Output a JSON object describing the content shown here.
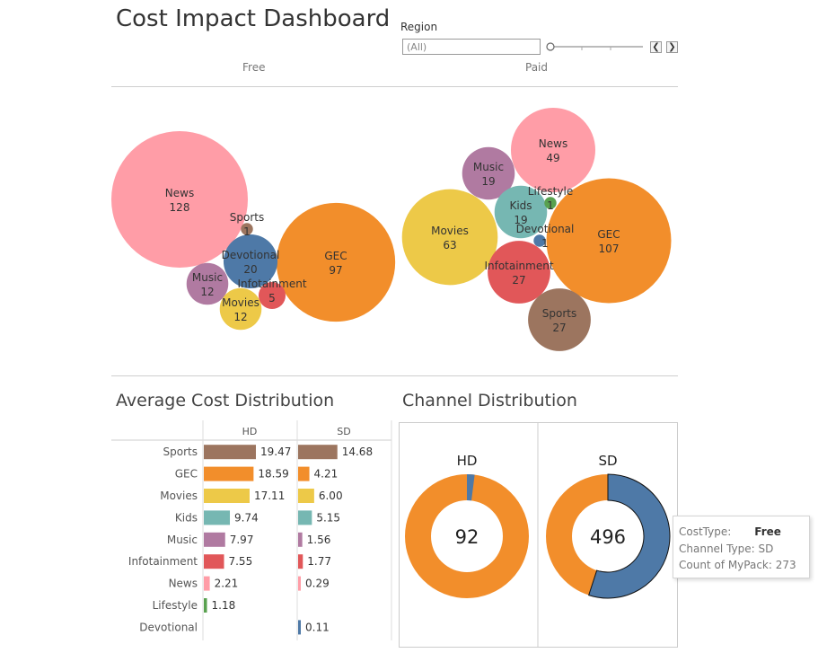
{
  "title": "Cost Impact Dashboard",
  "filter": {
    "label": "Region",
    "value": "(All)"
  },
  "bubble_section": {
    "free_label": "Free",
    "paid_label": "Paid"
  },
  "colors": {
    "News": "#ff9da7",
    "GEC": "#f28e2b",
    "Devotional": "#4e79a7",
    "Music": "#b07aa1",
    "Movies": "#edc948",
    "Infotainment": "#e15759",
    "Sports": "#9c755f",
    "Kids": "#76b7b2",
    "Lifestyle": "#59a14f",
    "HD_SD_other": "#f28e2b",
    "highlight": "#4e79a7"
  },
  "avg_title": "Average Cost Distribution",
  "channel_title": "Channel Distribution",
  "chart_data": [
    {
      "type": "scatter",
      "title": "Free",
      "series": [
        {
          "name": "News",
          "values": [
            128
          ]
        },
        {
          "name": "GEC",
          "values": [
            97
          ]
        },
        {
          "name": "Devotional",
          "values": [
            20
          ]
        },
        {
          "name": "Music",
          "values": [
            12
          ]
        },
        {
          "name": "Movies",
          "values": [
            12
          ]
        },
        {
          "name": "Infotainment",
          "values": [
            5
          ]
        },
        {
          "name": "Sports",
          "values": [
            1
          ]
        }
      ]
    },
    {
      "type": "scatter",
      "title": "Paid",
      "series": [
        {
          "name": "GEC",
          "values": [
            107
          ]
        },
        {
          "name": "Movies",
          "values": [
            63
          ]
        },
        {
          "name": "News",
          "values": [
            49
          ]
        },
        {
          "name": "Infotainment",
          "values": [
            27
          ]
        },
        {
          "name": "Sports",
          "values": [
            27
          ]
        },
        {
          "name": "Music",
          "values": [
            19
          ]
        },
        {
          "name": "Kids",
          "values": [
            19
          ]
        },
        {
          "name": "Lifestyle",
          "values": [
            1
          ]
        },
        {
          "name": "Devotional",
          "values": [
            1
          ]
        }
      ]
    },
    {
      "type": "bar",
      "title": "Average Cost Distribution",
      "categories": [
        "Sports",
        "GEC",
        "Movies",
        "Kids",
        "Music",
        "Infotainment",
        "News",
        "Lifestyle",
        "Devotional"
      ],
      "series": [
        {
          "name": "HD",
          "values": [
            19.47,
            18.59,
            17.11,
            9.74,
            7.97,
            7.55,
            2.21,
            1.18,
            null
          ]
        },
        {
          "name": "SD",
          "values": [
            14.68,
            4.21,
            6.0,
            5.15,
            1.56,
            1.77,
            0.29,
            null,
            0.11
          ]
        }
      ]
    },
    {
      "type": "pie",
      "title": "Channel Distribution",
      "panels": [
        {
          "name": "HD",
          "total": "92",
          "free_fraction": 0.02
        },
        {
          "name": "SD",
          "total": "496",
          "free_fraction": 0.55
        }
      ]
    }
  ],
  "tooltip": {
    "cost_type_label": "CostType:",
    "cost_type_value": "Free",
    "channel_type": "Channel Type: SD",
    "count": "Count of MyPack: 273"
  }
}
